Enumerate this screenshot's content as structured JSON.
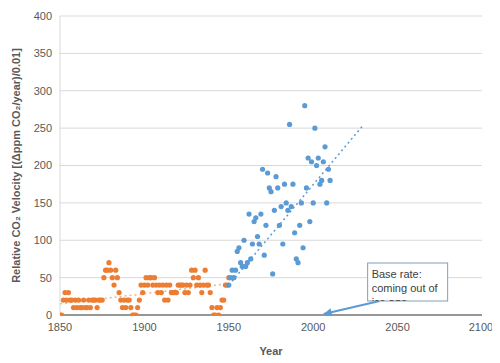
{
  "chart_data": {
    "type": "scatter",
    "x_label": "Year",
    "y_label": "Relative CO₂ Velocity [(Δppm CO₂/year)/0.01]",
    "xlim": [
      1850,
      2100
    ],
    "xticks": [
      1850,
      1900,
      1950,
      2000,
      2050,
      2100
    ],
    "ylim": [
      0,
      400
    ],
    "yticks": [
      0,
      50,
      100,
      150,
      200,
      250,
      300,
      350,
      400
    ],
    "grid": true,
    "series": [
      {
        "type": "scatter",
        "marker": "circle",
        "color": "#ed7d31",
        "x": [
          1850,
          1851,
          1852,
          1853,
          1854,
          1855,
          1856,
          1857,
          1858,
          1859,
          1860,
          1861,
          1862,
          1863,
          1864,
          1865,
          1866,
          1867,
          1868,
          1869,
          1870,
          1871,
          1872,
          1873,
          1874,
          1875,
          1876,
          1877,
          1878,
          1879,
          1880,
          1881,
          1882,
          1883,
          1884,
          1885,
          1886,
          1887,
          1888,
          1889,
          1890,
          1891,
          1892,
          1893,
          1894,
          1895,
          1896,
          1897,
          1898,
          1899,
          1900,
          1901,
          1902,
          1903,
          1904,
          1905,
          1906,
          1907,
          1908,
          1909,
          1910,
          1911,
          1912,
          1913,
          1914,
          1915,
          1916,
          1917,
          1918,
          1919,
          1920,
          1921,
          1922,
          1923,
          1924,
          1925,
          1926,
          1927,
          1928,
          1929,
          1930,
          1931,
          1932,
          1933,
          1934,
          1935,
          1936,
          1937,
          1938,
          1939,
          1940,
          1941,
          1942,
          1943,
          1944,
          1945,
          1946,
          1947,
          1948,
          1949,
          1950
        ],
        "values": [
          0,
          0,
          20,
          30,
          20,
          30,
          20,
          20,
          10,
          20,
          10,
          20,
          10,
          10,
          20,
          10,
          10,
          20,
          10,
          20,
          20,
          20,
          10,
          20,
          20,
          20,
          50,
          60,
          60,
          70,
          60,
          50,
          40,
          60,
          50,
          30,
          20,
          10,
          20,
          10,
          20,
          20,
          10,
          0,
          0,
          0,
          10,
          20,
          40,
          30,
          40,
          50,
          40,
          50,
          50,
          40,
          50,
          40,
          30,
          40,
          30,
          40,
          20,
          40,
          20,
          40,
          30,
          30,
          30,
          30,
          40,
          40,
          40,
          40,
          30,
          40,
          30,
          40,
          60,
          50,
          60,
          40,
          50,
          40,
          30,
          40,
          60,
          40,
          40,
          30,
          10,
          0,
          0,
          10,
          0,
          10,
          20,
          20,
          40,
          40,
          50
        ]
      },
      {
        "type": "scatter",
        "marker": "circle",
        "color": "#5b9bd5",
        "x": [
          1950,
          1951,
          1952,
          1953,
          1954,
          1955,
          1956,
          1957,
          1958,
          1959,
          1960,
          1961,
          1962,
          1963,
          1964,
          1965,
          1966,
          1967,
          1968,
          1969,
          1970,
          1971,
          1972,
          1973,
          1974,
          1975,
          1976,
          1977,
          1978,
          1979,
          1980,
          1981,
          1982,
          1983,
          1984,
          1985,
          1986,
          1987,
          1988,
          1989,
          1990,
          1991,
          1992,
          1993,
          1994,
          1995,
          1996,
          1997,
          1998,
          1999,
          2000,
          2001,
          2002,
          2003,
          2004,
          2005,
          2006,
          2007,
          2008,
          2009,
          2010
        ],
        "values": [
          40,
          50,
          60,
          50,
          60,
          85,
          90,
          70,
          65,
          100,
          65,
          70,
          135,
          75,
          95,
          125,
          130,
          105,
          95,
          135,
          195,
          80,
          120,
          190,
          170,
          165,
          55,
          140,
          185,
          170,
          120,
          145,
          95,
          175,
          150,
          140,
          255,
          145,
          175,
          110,
          75,
          70,
          120,
          150,
          90,
          280,
          170,
          210,
          125,
          205,
          150,
          250,
          200,
          210,
          175,
          180,
          205,
          225,
          150,
          195,
          180
        ]
      },
      {
        "type": "line",
        "line_style": "dotted",
        "color": "#f4b183",
        "x": [
          1850,
          1950
        ],
        "values": [
          15,
          42
        ]
      },
      {
        "type": "line",
        "line_style": "dotted",
        "color": "#5b9bd5",
        "x": [
          1950,
          2030
        ],
        "values": [
          40,
          255
        ]
      }
    ],
    "annotations": [
      {
        "text": "Base rate: coming out of ice age.",
        "x": 2005,
        "y": 0
      }
    ]
  }
}
